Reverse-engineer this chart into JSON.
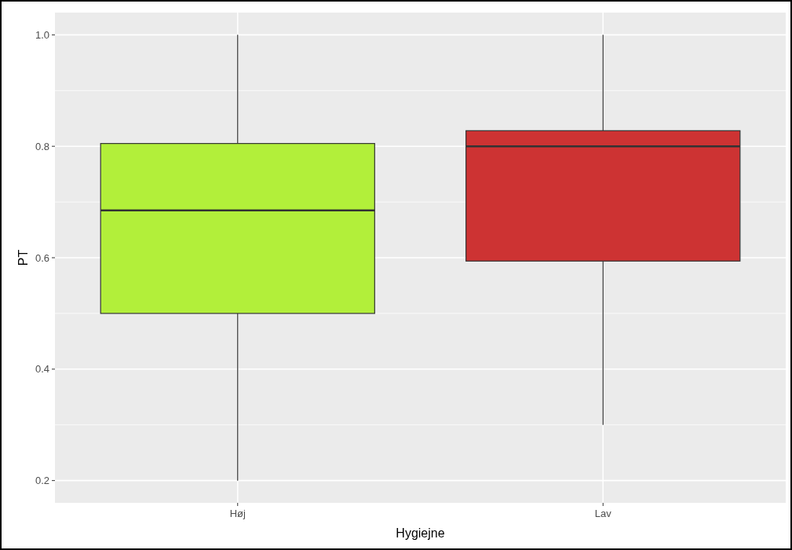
{
  "chart_data": {
    "type": "box",
    "xlabel": "Hygiejne",
    "ylabel": "PT",
    "categories": [
      "Høj",
      "Lav"
    ],
    "colors": [
      "#b2ef3a",
      "#cd3333"
    ],
    "boxes": [
      {
        "low": 0.2,
        "q1": 0.5,
        "median": 0.685,
        "q3": 0.805,
        "high": 1.0
      },
      {
        "low": 0.3,
        "q1": 0.594,
        "median": 0.8,
        "q3": 0.828,
        "high": 1.0
      }
    ],
    "ylim": [
      0.16,
      1.04
    ],
    "yticks": [
      {
        "value": 0.2,
        "label": "0.2"
      },
      {
        "value": 0.4,
        "label": "0.4"
      },
      {
        "value": 0.6,
        "label": "0.6"
      },
      {
        "value": 0.8,
        "label": "0.8"
      },
      {
        "value": 1.0,
        "label": "1.0"
      }
    ],
    "grid": true
  }
}
